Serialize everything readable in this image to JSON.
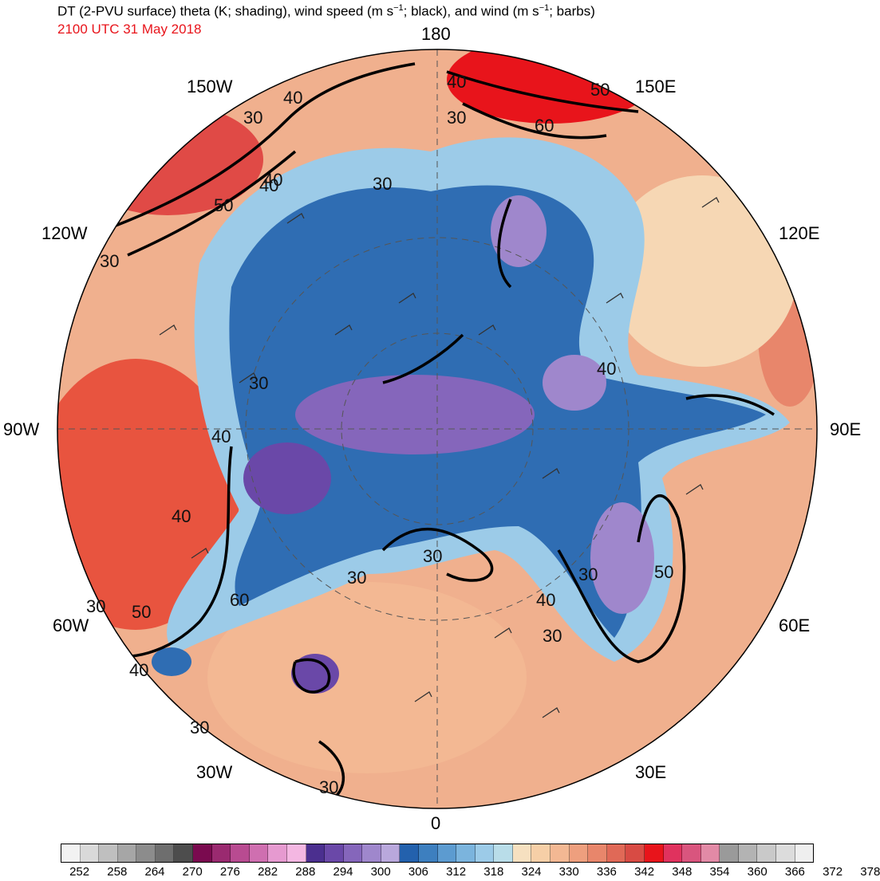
{
  "title": {
    "main_prefix": "DT (2-PVU surface) theta (K; shading), wind speed (m s",
    "sup1": "−1",
    "main_middle": "; black), and wind (m s",
    "sup2": "−1",
    "main_suffix": "; barbs)",
    "valid_time": "2100 UTC 31 May 2018",
    "valid_time_color": "#e8141b"
  },
  "map": {
    "projection": "north polar stereographic",
    "longitude_labels": {
      "top": "180",
      "bottom": "0",
      "left": "90W",
      "right": "90E",
      "upper_left": "150W",
      "upper_left_mid": "120W",
      "upper_right": "150E",
      "upper_right_mid": "120E",
      "lower_left": "60W",
      "lower_left_bottom": "30W",
      "lower_right": "60E",
      "lower_right_bottom": "30E"
    },
    "contour_labels": [
      {
        "text": "40"
      },
      {
        "text": "30"
      },
      {
        "text": "40"
      },
      {
        "text": "50"
      },
      {
        "text": "60"
      },
      {
        "text": "40"
      },
      {
        "text": "30"
      },
      {
        "text": "40"
      },
      {
        "text": "50"
      },
      {
        "text": "30"
      },
      {
        "text": "30"
      },
      {
        "text": "40"
      },
      {
        "text": "40"
      },
      {
        "text": "30"
      },
      {
        "text": "30"
      },
      {
        "text": "30"
      },
      {
        "text": "30"
      },
      {
        "text": "50"
      },
      {
        "text": "60"
      },
      {
        "text": "40"
      },
      {
        "text": "30"
      },
      {
        "text": "30"
      },
      {
        "text": "40"
      },
      {
        "text": "30"
      },
      {
        "text": "50"
      },
      {
        "text": "40"
      },
      {
        "text": "30"
      }
    ]
  },
  "colorbar": {
    "tick_labels": [
      "252",
      "258",
      "264",
      "270",
      "276",
      "282",
      "288",
      "294",
      "300",
      "306",
      "312",
      "318",
      "324",
      "330",
      "336",
      "342",
      "348",
      "354",
      "360",
      "366",
      "372",
      "378"
    ],
    "colors": [
      "#f2f2f2",
      "#d9d9d9",
      "#bfbfbf",
      "#a6a6a6",
      "#8c8c8c",
      "#6e6e6e",
      "#4d4d4d",
      "#7a0a4f",
      "#9a2a70",
      "#b84b91",
      "#cf6fb0",
      "#e69ad0",
      "#f4b7e2",
      "#4b2f8f",
      "#6a48a8",
      "#8566bb",
      "#9f87cc",
      "#b9a8dc",
      "#2361ad",
      "#3d7fbf",
      "#5c9bd0",
      "#7bb4dd",
      "#9ccbe8",
      "#b9dde9",
      "#f6e0c0",
      "#f6cfa7",
      "#f3b893",
      "#ee9f7e",
      "#e8866b",
      "#e06957",
      "#d84b44",
      "#e8141b",
      "#e0325e",
      "#d9557e",
      "#e28aa6",
      "#9a9a9a",
      "#b3b3b3",
      "#c9c9c9",
      "#dcdcdc",
      "#efefef"
    ]
  }
}
